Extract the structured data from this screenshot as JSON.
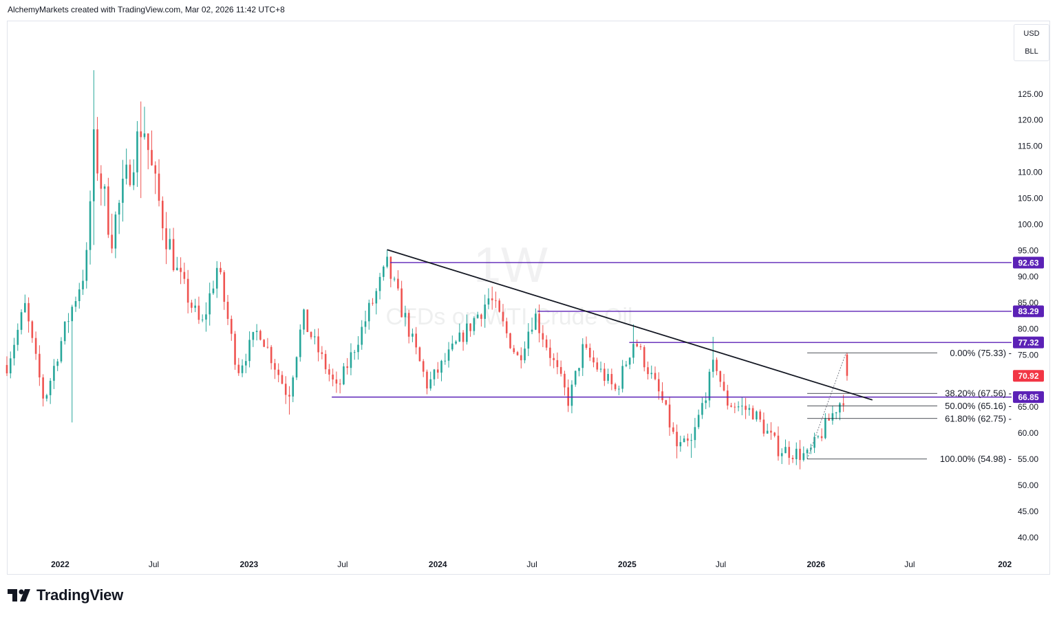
{
  "header": {
    "attribution": "AlchemyMarkets created with TradingView.com, Mar 02, 2026 11:42 UTC+8"
  },
  "brand": {
    "name": "TradingView"
  },
  "currency": {
    "line1": "USD",
    "line2": "BLL"
  },
  "watermark": {
    "interval": "1W",
    "symbol": "CFDs on WTI Crude Oil"
  },
  "colors": {
    "up": "#26a69a",
    "down": "#ef5350",
    "level_line": "#5b21b6",
    "trendline": "#131722",
    "price_badge": "#f23645",
    "grid_text": "#131722"
  },
  "chart_data": {
    "type": "candlestick",
    "interval": "1W",
    "ylim": [
      36.5,
      139
    ],
    "y_ticks": [
      "125.00",
      "120.00",
      "115.00",
      "110.00",
      "105.00",
      "100.00",
      "95.00",
      "90.00",
      "85.00",
      "80.00",
      "75.00",
      "65.00",
      "60.00",
      "55.00",
      "50.00",
      "45.00",
      "40.00"
    ],
    "x_ticks": [
      {
        "label": "2022",
        "date": "2022-01-01",
        "bold": true
      },
      {
        "label": "Jul",
        "date": "2022-07-01",
        "bold": false
      },
      {
        "label": "2023",
        "date": "2023-01-01",
        "bold": true
      },
      {
        "label": "Jul",
        "date": "2023-07-01",
        "bold": false
      },
      {
        "label": "2024",
        "date": "2024-01-01",
        "bold": true
      },
      {
        "label": "Jul",
        "date": "2024-07-01",
        "bold": false
      },
      {
        "label": "2025",
        "date": "2025-01-01",
        "bold": true
      },
      {
        "label": "Jul",
        "date": "2025-07-01",
        "bold": false
      },
      {
        "label": "2026",
        "date": "2026-01-01",
        "bold": true
      },
      {
        "label": "Jul",
        "date": "2026-07-01",
        "bold": false
      },
      {
        "label": "202",
        "date": "2027-01-01",
        "bold": true
      }
    ],
    "x_range": [
      "2021-09-20",
      "2027-01-14"
    ],
    "anchors": [
      {
        "date": "2021-09-20",
        "price": 73
      },
      {
        "date": "2021-10-25",
        "price": 84
      },
      {
        "date": "2021-12-01",
        "price": 66
      },
      {
        "date": "2022-01-10",
        "price": 80
      },
      {
        "date": "2022-02-20",
        "price": 92
      },
      {
        "date": "2022-03-07",
        "price": 115
      },
      {
        "date": "2022-04-10",
        "price": 98
      },
      {
        "date": "2022-06-10",
        "price": 120
      },
      {
        "date": "2022-07-01",
        "price": 108
      },
      {
        "date": "2022-08-10",
        "price": 92
      },
      {
        "date": "2022-10-01",
        "price": 80
      },
      {
        "date": "2022-11-01",
        "price": 92
      },
      {
        "date": "2022-12-10",
        "price": 72
      },
      {
        "date": "2023-01-20",
        "price": 80
      },
      {
        "date": "2023-03-18",
        "price": 67
      },
      {
        "date": "2023-04-15",
        "price": 82
      },
      {
        "date": "2023-06-20",
        "price": 68
      },
      {
        "date": "2023-09-25",
        "price": 92
      },
      {
        "date": "2023-12-12",
        "price": 69
      },
      {
        "date": "2024-04-10",
        "price": 86
      },
      {
        "date": "2024-06-05",
        "price": 74
      },
      {
        "date": "2024-07-05",
        "price": 83
      },
      {
        "date": "2024-09-10",
        "price": 66
      },
      {
        "date": "2024-10-07",
        "price": 76
      },
      {
        "date": "2024-12-10",
        "price": 68
      },
      {
        "date": "2025-01-15",
        "price": 78
      },
      {
        "date": "2025-03-10",
        "price": 66
      },
      {
        "date": "2025-04-08",
        "price": 57
      },
      {
        "date": "2025-05-05",
        "price": 58
      },
      {
        "date": "2025-06-20",
        "price": 74
      },
      {
        "date": "2025-07-10",
        "price": 66
      },
      {
        "date": "2025-09-01",
        "price": 64
      },
      {
        "date": "2025-10-20",
        "price": 57
      },
      {
        "date": "2025-12-16",
        "price": 55.5
      },
      {
        "date": "2026-01-12",
        "price": 60
      },
      {
        "date": "2026-02-10",
        "price": 65
      },
      {
        "date": "2026-02-24",
        "price": 67
      }
    ],
    "spikes": [
      {
        "date": "2022-03-07",
        "high": 129.5,
        "low": 96
      },
      {
        "date": "2022-06-07",
        "high": 123.5,
        "low": 105
      },
      {
        "date": "2022-06-14",
        "high": 122.5
      },
      {
        "date": "2022-01-24",
        "low": 62
      },
      {
        "date": "2023-03-18",
        "low": 63.5
      },
      {
        "date": "2023-09-25",
        "high": 95.1
      },
      {
        "date": "2024-04-08",
        "high": 87.7
      },
      {
        "date": "2025-01-13",
        "high": 80.8
      },
      {
        "date": "2025-04-07",
        "low": 55.1
      },
      {
        "date": "2025-05-05",
        "low": 55.2
      },
      {
        "date": "2025-06-16",
        "high": 78.4
      },
      {
        "date": "2025-12-15",
        "low": 54.98
      }
    ],
    "last_candle": {
      "date": "2026-03-02",
      "open": 75.0,
      "high": 75.33,
      "low": 70.0,
      "close": 70.92
    },
    "horizontal_levels": [
      {
        "price": 92.63,
        "label": "92.63",
        "start": "2023-10-01"
      },
      {
        "price": 83.29,
        "label": "83.29",
        "start": "2024-07-12"
      },
      {
        "price": 77.32,
        "label": "77.32",
        "start": "2025-01-05"
      },
      {
        "price": 66.85,
        "label": "66.85",
        "start": "2023-06-10"
      }
    ],
    "current_price": {
      "price": 70.92,
      "label": "70.92"
    },
    "trendline": {
      "start": {
        "date": "2023-09-25",
        "price": 95.1
      },
      "end": {
        "date": "2026-04-20",
        "price": 66.3
      }
    },
    "fibonacci": {
      "start": {
        "date": "2025-12-15",
        "price": 54.98
      },
      "end": {
        "date": "2026-02-28",
        "price": 75.33
      },
      "levels": [
        {
          "label": "0.00% (75.33)",
          "price": 75.33
        },
        {
          "label": "38.20% (67.56)",
          "price": 67.56
        },
        {
          "label": "50.00% (65.16)",
          "price": 65.16
        },
        {
          "label": "61.80% (62.75)",
          "price": 62.75
        },
        {
          "label": "100.00% (54.98)",
          "price": 54.98
        }
      ]
    }
  }
}
